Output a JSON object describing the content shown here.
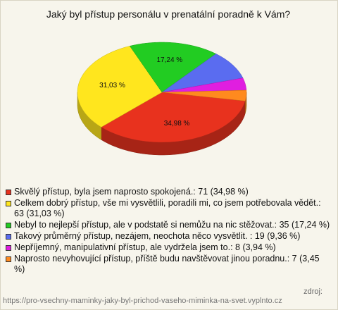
{
  "chart_data": {
    "type": "pie3d",
    "title": "Jaký byl přístup personálu v prenatální poradně k Vám?",
    "categories": [
      "Skvělý přístup, byla jsem naprosto spokojená.: 71 (34,98 %)",
      "Celkem dobrý přístup, vše mi vysvětlili, poradili mi, co jsem potřebovala vědět.: 63 (31,03 %)",
      "Nebyl to nejlepší přístup, ale v podstatě si nemůžu na nic stěžovat.: 35 (17,24 %)",
      "Takový průměrný přístup, nezájem, neochota něco vysvětlit. : 19 (9,36 %)",
      "Nepříjemný, manipulativní přístup, ale vydržela jsem to.: 8 (3,94 %)",
      "Naprosto nevyhovující přístup, příště budu navštěvovat jinou poradnu.: 7 (3,45 %)"
    ],
    "values": [
      34.98,
      31.03,
      17.24,
      9.36,
      3.94,
      3.45
    ],
    "value_labels": [
      "34,98 %",
      "31,03 %",
      "17,24 %",
      null,
      null,
      null
    ],
    "colors": [
      "#e8321e",
      "#ffe61e",
      "#22cc22",
      "#5a6cf0",
      "#e01ee0",
      "#ff8a1e"
    ],
    "source_label": "zdroj:",
    "source_url": "https://pro-vsechny-maminky-jaky-byl-prichod-vaseho-miminka-na-svet.vyplnto.cz"
  }
}
